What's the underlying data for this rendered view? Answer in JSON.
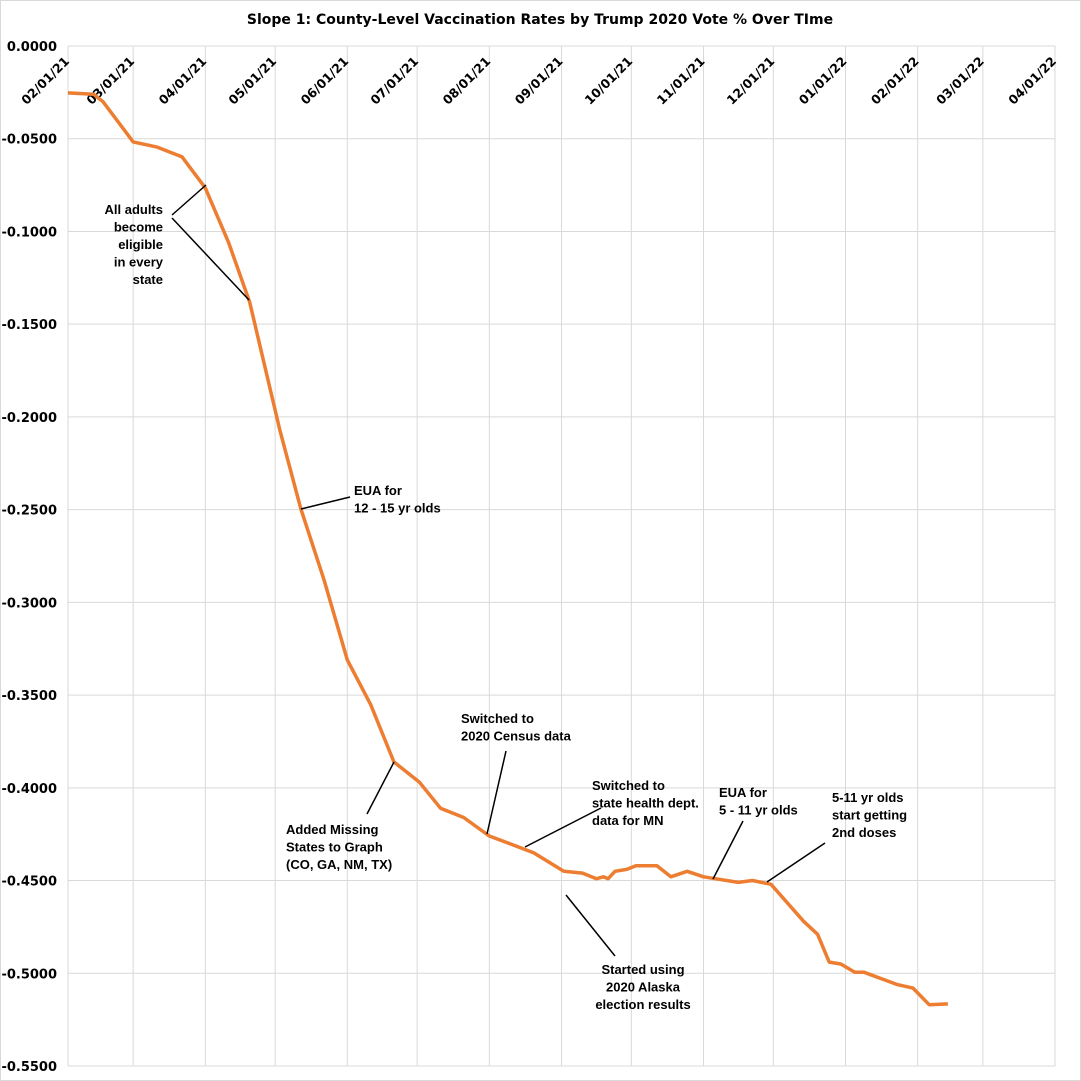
{
  "chart_data": {
    "type": "line",
    "title": "Slope 1: County-Level Vaccination Rates by Trump 2020 Vote % Over TIme",
    "xlabel": "",
    "ylabel": "",
    "x_range": [
      "2021-02-01",
      "2022-04-01"
    ],
    "ylim": [
      -0.55,
      0
    ],
    "grid": true,
    "line_color": "#ED7D31",
    "y_ticks": [
      "0.0000",
      "-0.0500",
      "-0.1000",
      "-0.1500",
      "-0.2000",
      "-0.2500",
      "-0.3000",
      "-0.3500",
      "-0.4000",
      "-0.4500",
      "-0.5000",
      "-0.5500"
    ],
    "y_tick_values": [
      0,
      -0.05,
      -0.1,
      -0.15,
      -0.2,
      -0.25,
      -0.3,
      -0.35,
      -0.4,
      -0.45,
      -0.5,
      -0.55
    ],
    "x_ticks": [
      "02/01/21",
      "03/01/21",
      "04/01/21",
      "05/01/21",
      "06/01/21",
      "07/01/21",
      "08/01/21",
      "09/01/21",
      "10/01/21",
      "11/01/21",
      "12/01/21",
      "01/01/22",
      "02/01/22",
      "03/01/22",
      "04/01/22"
    ],
    "x_tick_dates": [
      "2021-02-01",
      "2021-03-01",
      "2021-04-01",
      "2021-05-01",
      "2021-06-01",
      "2021-07-01",
      "2021-08-01",
      "2021-09-01",
      "2021-10-01",
      "2021-11-01",
      "2021-12-01",
      "2022-01-01",
      "2022-02-01",
      "2022-03-01",
      "2022-04-01"
    ],
    "series": [
      {
        "x": [
          "2021-02-01",
          "2021-02-12",
          "2021-02-16",
          "2021-03-01",
          "2021-03-11",
          "2021-03-22",
          "2021-04-01",
          "2021-04-11",
          "2021-04-20",
          "2021-05-03",
          "2021-05-12",
          "2021-05-22",
          "2021-06-01",
          "2021-06-11",
          "2021-06-21",
          "2021-07-02",
          "2021-07-11",
          "2021-07-21",
          "2021-08-01",
          "2021-08-20",
          "2021-09-02",
          "2021-09-10",
          "2021-09-16",
          "2021-09-19",
          "2021-09-21",
          "2021-09-24",
          "2021-09-29",
          "2021-10-03",
          "2021-10-12",
          "2021-10-18",
          "2021-10-25",
          "2021-11-01",
          "2021-11-16",
          "2021-11-22",
          "2021-11-30",
          "2021-12-14",
          "2021-12-20",
          "2021-12-25",
          "2021-12-30",
          "2022-01-05",
          "2022-01-09",
          "2022-01-23",
          "2022-01-30",
          "2022-02-06",
          "2022-02-14"
        ],
        "y": [
          -0.0253,
          -0.026,
          -0.03,
          -0.0517,
          -0.0544,
          -0.0598,
          -0.0765,
          -0.106,
          -0.138,
          -0.207,
          -0.2495,
          -0.288,
          -0.331,
          -0.355,
          -0.386,
          -0.397,
          -0.411,
          -0.416,
          -0.426,
          -0.435,
          -0.445,
          -0.446,
          -0.449,
          -0.448,
          -0.449,
          -0.445,
          -0.444,
          -0.442,
          -0.442,
          -0.448,
          -0.445,
          -0.448,
          -0.451,
          -0.45,
          -0.452,
          -0.472,
          -0.479,
          -0.494,
          -0.495,
          -0.4995,
          -0.4995,
          -0.506,
          -0.508,
          -0.517,
          -0.5165
        ]
      }
    ],
    "annotations": [
      {
        "lines": [
          "All adults",
          "become",
          "eligible",
          "in every",
          "state"
        ]
      },
      {
        "lines": [
          "EUA for",
          "12 - 15 yr olds"
        ]
      },
      {
        "lines": [
          "Added Missing",
          "States to Graph",
          "(CO, GA, NM, TX)"
        ]
      },
      {
        "lines": [
          "Switched to",
          "2020 Census data"
        ]
      },
      {
        "lines": [
          "Switched to",
          "state health dept.",
          "data for MN"
        ]
      },
      {
        "lines": [
          "EUA for",
          "5 - 11 yr olds"
        ]
      },
      {
        "lines": [
          "5-11 yr olds",
          "start getting",
          "2nd doses"
        ]
      },
      {
        "lines": [
          "Started using",
          "2020 Alaska",
          "election results"
        ]
      }
    ]
  }
}
